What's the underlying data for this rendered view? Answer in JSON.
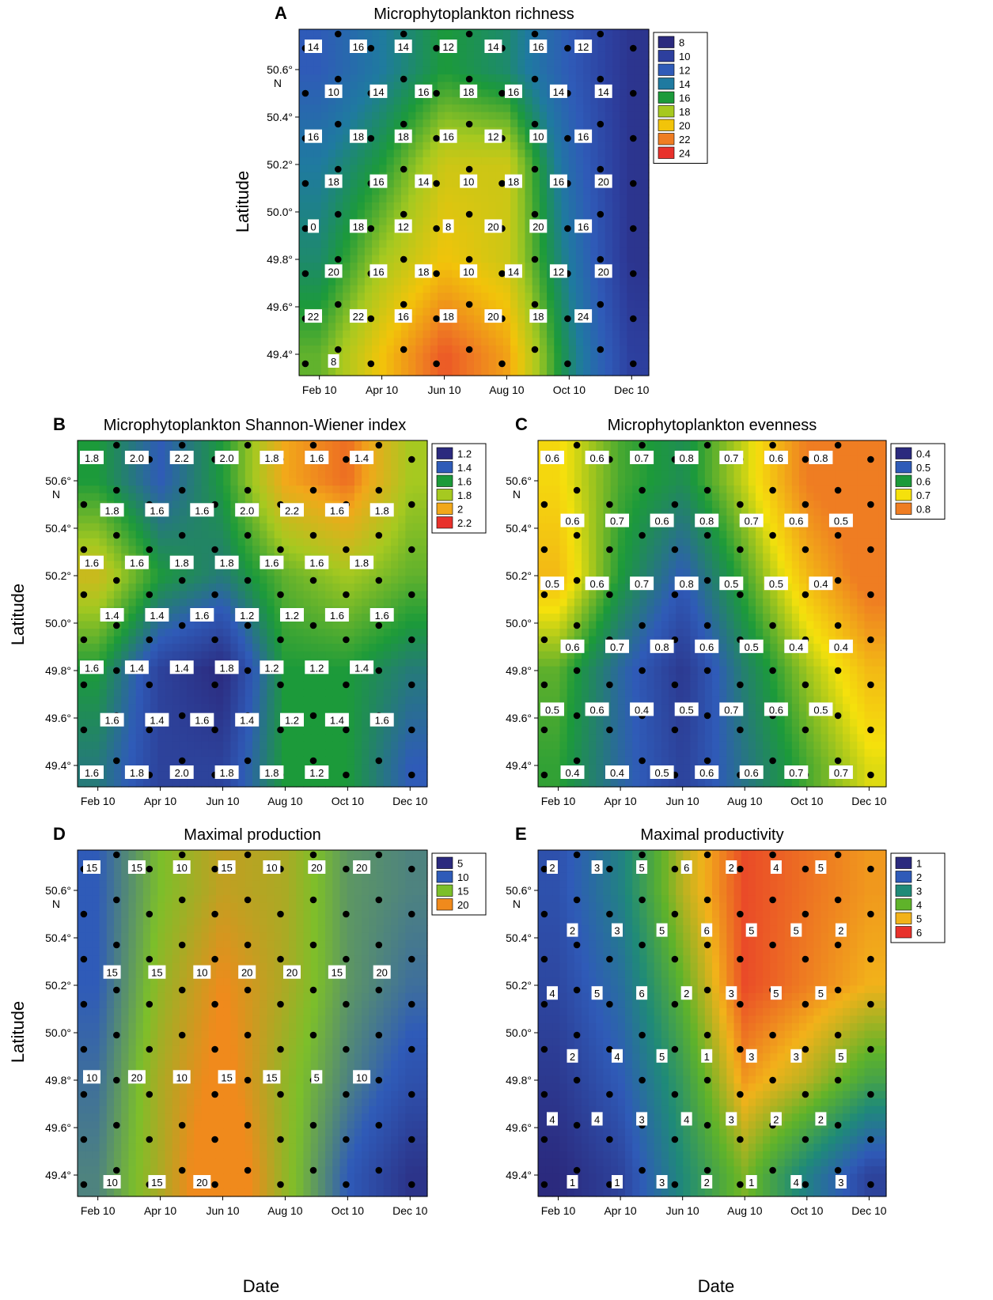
{
  "figure": {
    "x_axis_title": "Date",
    "y_axis_title": "Latitude"
  },
  "chart_data": [
    {
      "id": "A",
      "letter": "A",
      "type": "heatmap",
      "title": "Microphytoplankton richness",
      "x_ticks": [
        "Feb 10",
        "Apr 10",
        "Jun 10",
        "Aug 10",
        "Oct 10",
        "Dec 10"
      ],
      "y_ticks": [
        "49.4°",
        "49.6°",
        "49.8°",
        "50.0°",
        "50.2°",
        "50.4°",
        "50.6°"
      ],
      "y_top_unit": "N",
      "ylabel": "Latitude",
      "xlabel": "",
      "legend": {
        "placement": "right",
        "levels": [
          8,
          10,
          12,
          14,
          16,
          18,
          20,
          22,
          24
        ],
        "colors": [
          "#2b2a7e",
          "#2d3f9e",
          "#2f5bb8",
          "#1f7aa0",
          "#1c9a3a",
          "#a6c920",
          "#f2c40a",
          "#ef7d22",
          "#e8312b"
        ]
      },
      "field": {
        "lat": [
          50.6,
          50.2,
          49.8,
          49.4
        ],
        "month": [
          1,
          3,
          5,
          7,
          9,
          11
        ],
        "values": [
          [
            12,
            14,
            16,
            15,
            12,
            9
          ],
          [
            14,
            16,
            19,
            19,
            13,
            9
          ],
          [
            15,
            18,
            20,
            19,
            14,
            9
          ],
          [
            17,
            20,
            23,
            21,
            15,
            10
          ]
        ]
      },
      "contour_labels": [
        "14",
        "16",
        "14",
        "12",
        "14",
        "16",
        "12",
        "10",
        "14",
        "16",
        "18",
        "16",
        "14",
        "14",
        "16",
        "18",
        "18",
        "16",
        "12",
        "10",
        "16",
        "18",
        "16",
        "14",
        "10",
        "18",
        "16",
        "20",
        "0",
        "18",
        "12",
        "8",
        "20",
        "20",
        "16",
        "20",
        "16",
        "18",
        "10",
        "14",
        "12",
        "20",
        "22",
        "22",
        "16",
        "18",
        "20",
        "18",
        "24",
        "8"
      ]
    },
    {
      "id": "B",
      "letter": "B",
      "type": "heatmap",
      "title": "Microphytoplankton Shannon-Wiener index",
      "x_ticks": [
        "Feb 10",
        "Apr 10",
        "Jun 10",
        "Aug 10",
        "Oct 10",
        "Dec 10"
      ],
      "y_ticks": [
        "49.4°",
        "49.6°",
        "49.8°",
        "50.0°",
        "50.2°",
        "50.4°",
        "50.6°"
      ],
      "y_top_unit": "N",
      "ylabel": "Latitude",
      "xlabel": "",
      "legend": {
        "placement": "right",
        "levels": [
          1.2,
          1.4,
          1.6,
          1.8,
          2.0,
          2.2
        ],
        "colors": [
          "#2b2a7e",
          "#2f5bb8",
          "#1c9a3a",
          "#a6c920",
          "#f2a81a",
          "#e8312b"
        ]
      },
      "field": {
        "lat": [
          50.6,
          50.2,
          49.8,
          49.4
        ],
        "month": [
          1,
          3,
          5,
          7,
          9,
          11
        ],
        "values": [
          [
            1.6,
            1.4,
            1.6,
            2.0,
            2.1,
            1.8
          ],
          [
            1.9,
            1.6,
            1.5,
            1.7,
            1.8,
            1.7
          ],
          [
            1.6,
            1.3,
            1.2,
            1.6,
            1.6,
            1.5
          ],
          [
            1.5,
            1.3,
            1.3,
            1.6,
            1.6,
            1.4
          ]
        ]
      },
      "contour_labels": [
        "1.8",
        "2.0",
        "2.2",
        "2.0",
        "1.8",
        "1.6",
        "1.4",
        "1.8",
        "1.6",
        "1.6",
        "2.0",
        "2.2",
        "1.6",
        "1.8",
        "1.6",
        "1.6",
        "1.8",
        "1.8",
        "1.6",
        "1.6",
        "1.8",
        "1.4",
        "1.4",
        "1.6",
        "1.2",
        "1.2",
        "1.6",
        "1.6",
        "1.6",
        "1.4",
        "1.4",
        "1.8",
        "1.2",
        "1.2",
        "1.4",
        "1.6",
        "1.4",
        "1.6",
        "1.4",
        "1.2",
        "1.4",
        "1.6",
        "1.6",
        "1.8",
        "2.0",
        "1.8",
        "1.8",
        "1.2"
      ]
    },
    {
      "id": "C",
      "letter": "C",
      "type": "heatmap",
      "title": "Microphytoplankton evenness",
      "x_ticks": [
        "Feb 10",
        "Apr 10",
        "Jun 10",
        "Aug 10",
        "Oct 10",
        "Dec 10"
      ],
      "y_ticks": [
        "49.4°",
        "49.6°",
        "49.8°",
        "50.0°",
        "50.2°",
        "50.4°",
        "50.6°"
      ],
      "y_top_unit": "N",
      "ylabel": "",
      "xlabel": "",
      "legend": {
        "placement": "right",
        "levels": [
          0.4,
          0.5,
          0.6,
          0.7,
          0.8
        ],
        "colors": [
          "#2b2a7e",
          "#2f5bb8",
          "#1c9a3a",
          "#f5e10c",
          "#ef7d22"
        ]
      },
      "field": {
        "lat": [
          50.6,
          50.2,
          49.8,
          49.4
        ],
        "month": [
          1,
          3,
          5,
          7,
          9,
          11
        ],
        "values": [
          [
            0.71,
            0.62,
            0.58,
            0.68,
            0.8,
            0.84
          ],
          [
            0.74,
            0.6,
            0.5,
            0.62,
            0.74,
            0.82
          ],
          [
            0.63,
            0.52,
            0.43,
            0.56,
            0.66,
            0.74
          ],
          [
            0.61,
            0.52,
            0.45,
            0.54,
            0.62,
            0.69
          ]
        ]
      },
      "contour_labels": [
        "0.6",
        "0.6",
        "0.7",
        "0.8",
        "0.7",
        "0.6",
        "0.8",
        "0.6",
        "0.7",
        "0.6",
        "0.8",
        "0.7",
        "0.6",
        "0.5",
        "0.5",
        "0.6",
        "0.7",
        "0.8",
        "0.5",
        "0.5",
        "0.4",
        "0.6",
        "0.7",
        "0.8",
        "0.6",
        "0.5",
        "0.4",
        "0.4",
        "0.5",
        "0.6",
        "0.4",
        "0.5",
        "0.7",
        "0.6",
        "0.5",
        "0.4",
        "0.4",
        "0.5",
        "0.6",
        "0.6",
        "0.7",
        "0.7"
      ]
    },
    {
      "id": "D",
      "letter": "D",
      "type": "heatmap",
      "title": "Maximal production",
      "x_ticks": [
        "Feb 10",
        "Apr 10",
        "Jun 10",
        "Aug 10",
        "Oct 10",
        "Dec 10"
      ],
      "y_ticks": [
        "49.4°",
        "49.6°",
        "49.8°",
        "50.0°",
        "50.2°",
        "50.4°",
        "50.6°"
      ],
      "y_top_unit": "N",
      "ylabel": "Latitude",
      "xlabel": "Date",
      "legend": {
        "placement": "right",
        "levels": [
          5,
          10,
          15,
          20
        ],
        "colors": [
          "#2b2a7e",
          "#2f5bb8",
          "#7cbf2a",
          "#f08a1c"
        ]
      },
      "field": {
        "lat": [
          50.6,
          50.2,
          49.8,
          49.4
        ],
        "month": [
          1,
          3,
          5,
          7,
          9,
          11
        ],
        "values": [
          [
            10,
            15,
            18,
            17,
            13,
            12
          ],
          [
            10,
            16,
            20,
            17,
            13,
            11
          ],
          [
            11,
            17,
            21,
            16,
            12,
            9
          ],
          [
            12,
            17,
            23,
            16,
            10,
            6
          ]
        ]
      },
      "contour_labels": [
        "15",
        "15",
        "10",
        "15",
        "10",
        "20",
        "20",
        "15",
        "15",
        "10",
        "20",
        "20",
        "15",
        "20",
        "10",
        "20",
        "10",
        "15",
        "15",
        "5",
        "10",
        "10",
        "15",
        "20"
      ]
    },
    {
      "id": "E",
      "letter": "E",
      "type": "heatmap",
      "title": "Maximal productivity",
      "x_ticks": [
        "Feb 10",
        "Apr 10",
        "Jun 10",
        "Aug 10",
        "Oct 10",
        "Dec 10"
      ],
      "y_ticks": [
        "49.4°",
        "49.6°",
        "49.8°",
        "50.0°",
        "50.2°",
        "50.4°",
        "50.6°"
      ],
      "y_top_unit": "N",
      "ylabel": "",
      "xlabel": "Date",
      "legend": {
        "placement": "right",
        "levels": [
          1,
          2,
          3,
          4,
          5,
          6
        ],
        "colors": [
          "#2b2a7e",
          "#2f5bb8",
          "#1f8a78",
          "#5fb32a",
          "#f2b21a",
          "#e8312b"
        ]
      },
      "field": {
        "lat": [
          50.6,
          50.2,
          49.8,
          49.4
        ],
        "month": [
          1,
          3,
          5,
          7,
          9,
          11
        ],
        "values": [
          [
            1.8,
            2.8,
            4.6,
            5.8,
            5.5,
            5.2
          ],
          [
            1.6,
            2.4,
            4.0,
            5.8,
            5.4,
            5.0
          ],
          [
            1.3,
            2.0,
            3.4,
            5.2,
            4.6,
            3.6
          ],
          [
            1.0,
            1.5,
            3.0,
            4.2,
            2.8,
            1.5
          ]
        ]
      },
      "contour_labels": [
        "2",
        "3",
        "5",
        "6",
        "2",
        "4",
        "5",
        "2",
        "3",
        "5",
        "6",
        "5",
        "5",
        "2",
        "4",
        "5",
        "6",
        "2",
        "3",
        "5",
        "5",
        "2",
        "4",
        "5",
        "1",
        "3",
        "3",
        "5",
        "4",
        "4",
        "3",
        "4",
        "3",
        "2",
        "2",
        "1",
        "1",
        "3",
        "2",
        "1",
        "4",
        "3"
      ]
    }
  ]
}
